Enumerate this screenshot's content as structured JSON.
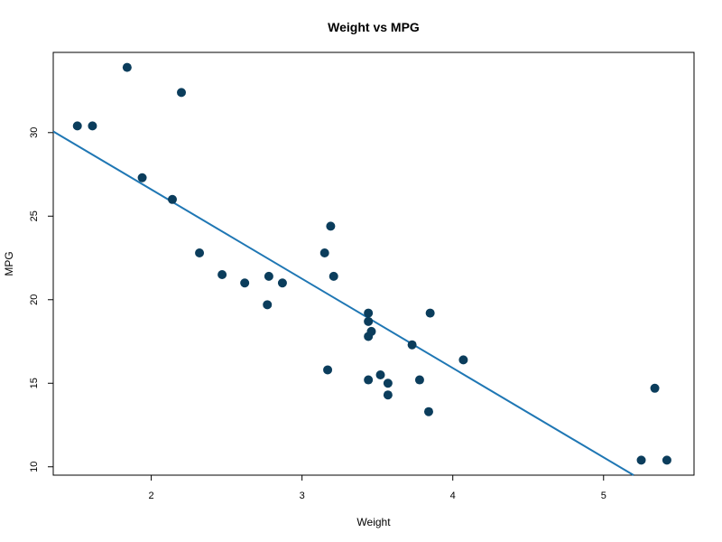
{
  "chart_data": {
    "type": "scatter",
    "title": "Weight vs MPG",
    "xlabel": "Weight",
    "ylabel": "MPG",
    "xlim": [
      1.35,
      5.6
    ],
    "ylim": [
      9.5,
      34.8
    ],
    "xticks": [
      "2",
      "3",
      "4",
      "5"
    ],
    "yticks": [
      "10",
      "15",
      "20",
      "25",
      "30"
    ],
    "grid": false,
    "colors": {
      "points": "#0b3d5c",
      "line": "#1f77b4",
      "frame": "#000000"
    },
    "points": [
      {
        "x": 1.51,
        "y": 30.4
      },
      {
        "x": 1.61,
        "y": 30.4
      },
      {
        "x": 1.84,
        "y": 33.9
      },
      {
        "x": 1.94,
        "y": 27.3
      },
      {
        "x": 2.14,
        "y": 26.0
      },
      {
        "x": 2.2,
        "y": 32.4
      },
      {
        "x": 2.32,
        "y": 22.8
      },
      {
        "x": 2.47,
        "y": 21.5
      },
      {
        "x": 2.62,
        "y": 21.0
      },
      {
        "x": 2.77,
        "y": 19.7
      },
      {
        "x": 2.78,
        "y": 21.4
      },
      {
        "x": 2.87,
        "y": 21.0
      },
      {
        "x": 3.15,
        "y": 22.8
      },
      {
        "x": 3.17,
        "y": 15.8
      },
      {
        "x": 3.19,
        "y": 24.4
      },
      {
        "x": 3.21,
        "y": 21.4
      },
      {
        "x": 3.44,
        "y": 18.7
      },
      {
        "x": 3.44,
        "y": 19.2
      },
      {
        "x": 3.44,
        "y": 17.8
      },
      {
        "x": 3.46,
        "y": 18.1
      },
      {
        "x": 3.44,
        "y": 15.2
      },
      {
        "x": 3.52,
        "y": 15.5
      },
      {
        "x": 3.57,
        "y": 15.0
      },
      {
        "x": 3.57,
        "y": 14.3
      },
      {
        "x": 3.73,
        "y": 17.3
      },
      {
        "x": 3.78,
        "y": 15.2
      },
      {
        "x": 3.84,
        "y": 13.3
      },
      {
        "x": 3.85,
        "y": 19.2
      },
      {
        "x": 4.07,
        "y": 16.4
      },
      {
        "x": 5.25,
        "y": 10.4
      },
      {
        "x": 5.34,
        "y": 14.7
      },
      {
        "x": 5.42,
        "y": 10.4
      }
    ],
    "fit_line": {
      "intercept": 37.285,
      "slope": -5.344
    }
  }
}
